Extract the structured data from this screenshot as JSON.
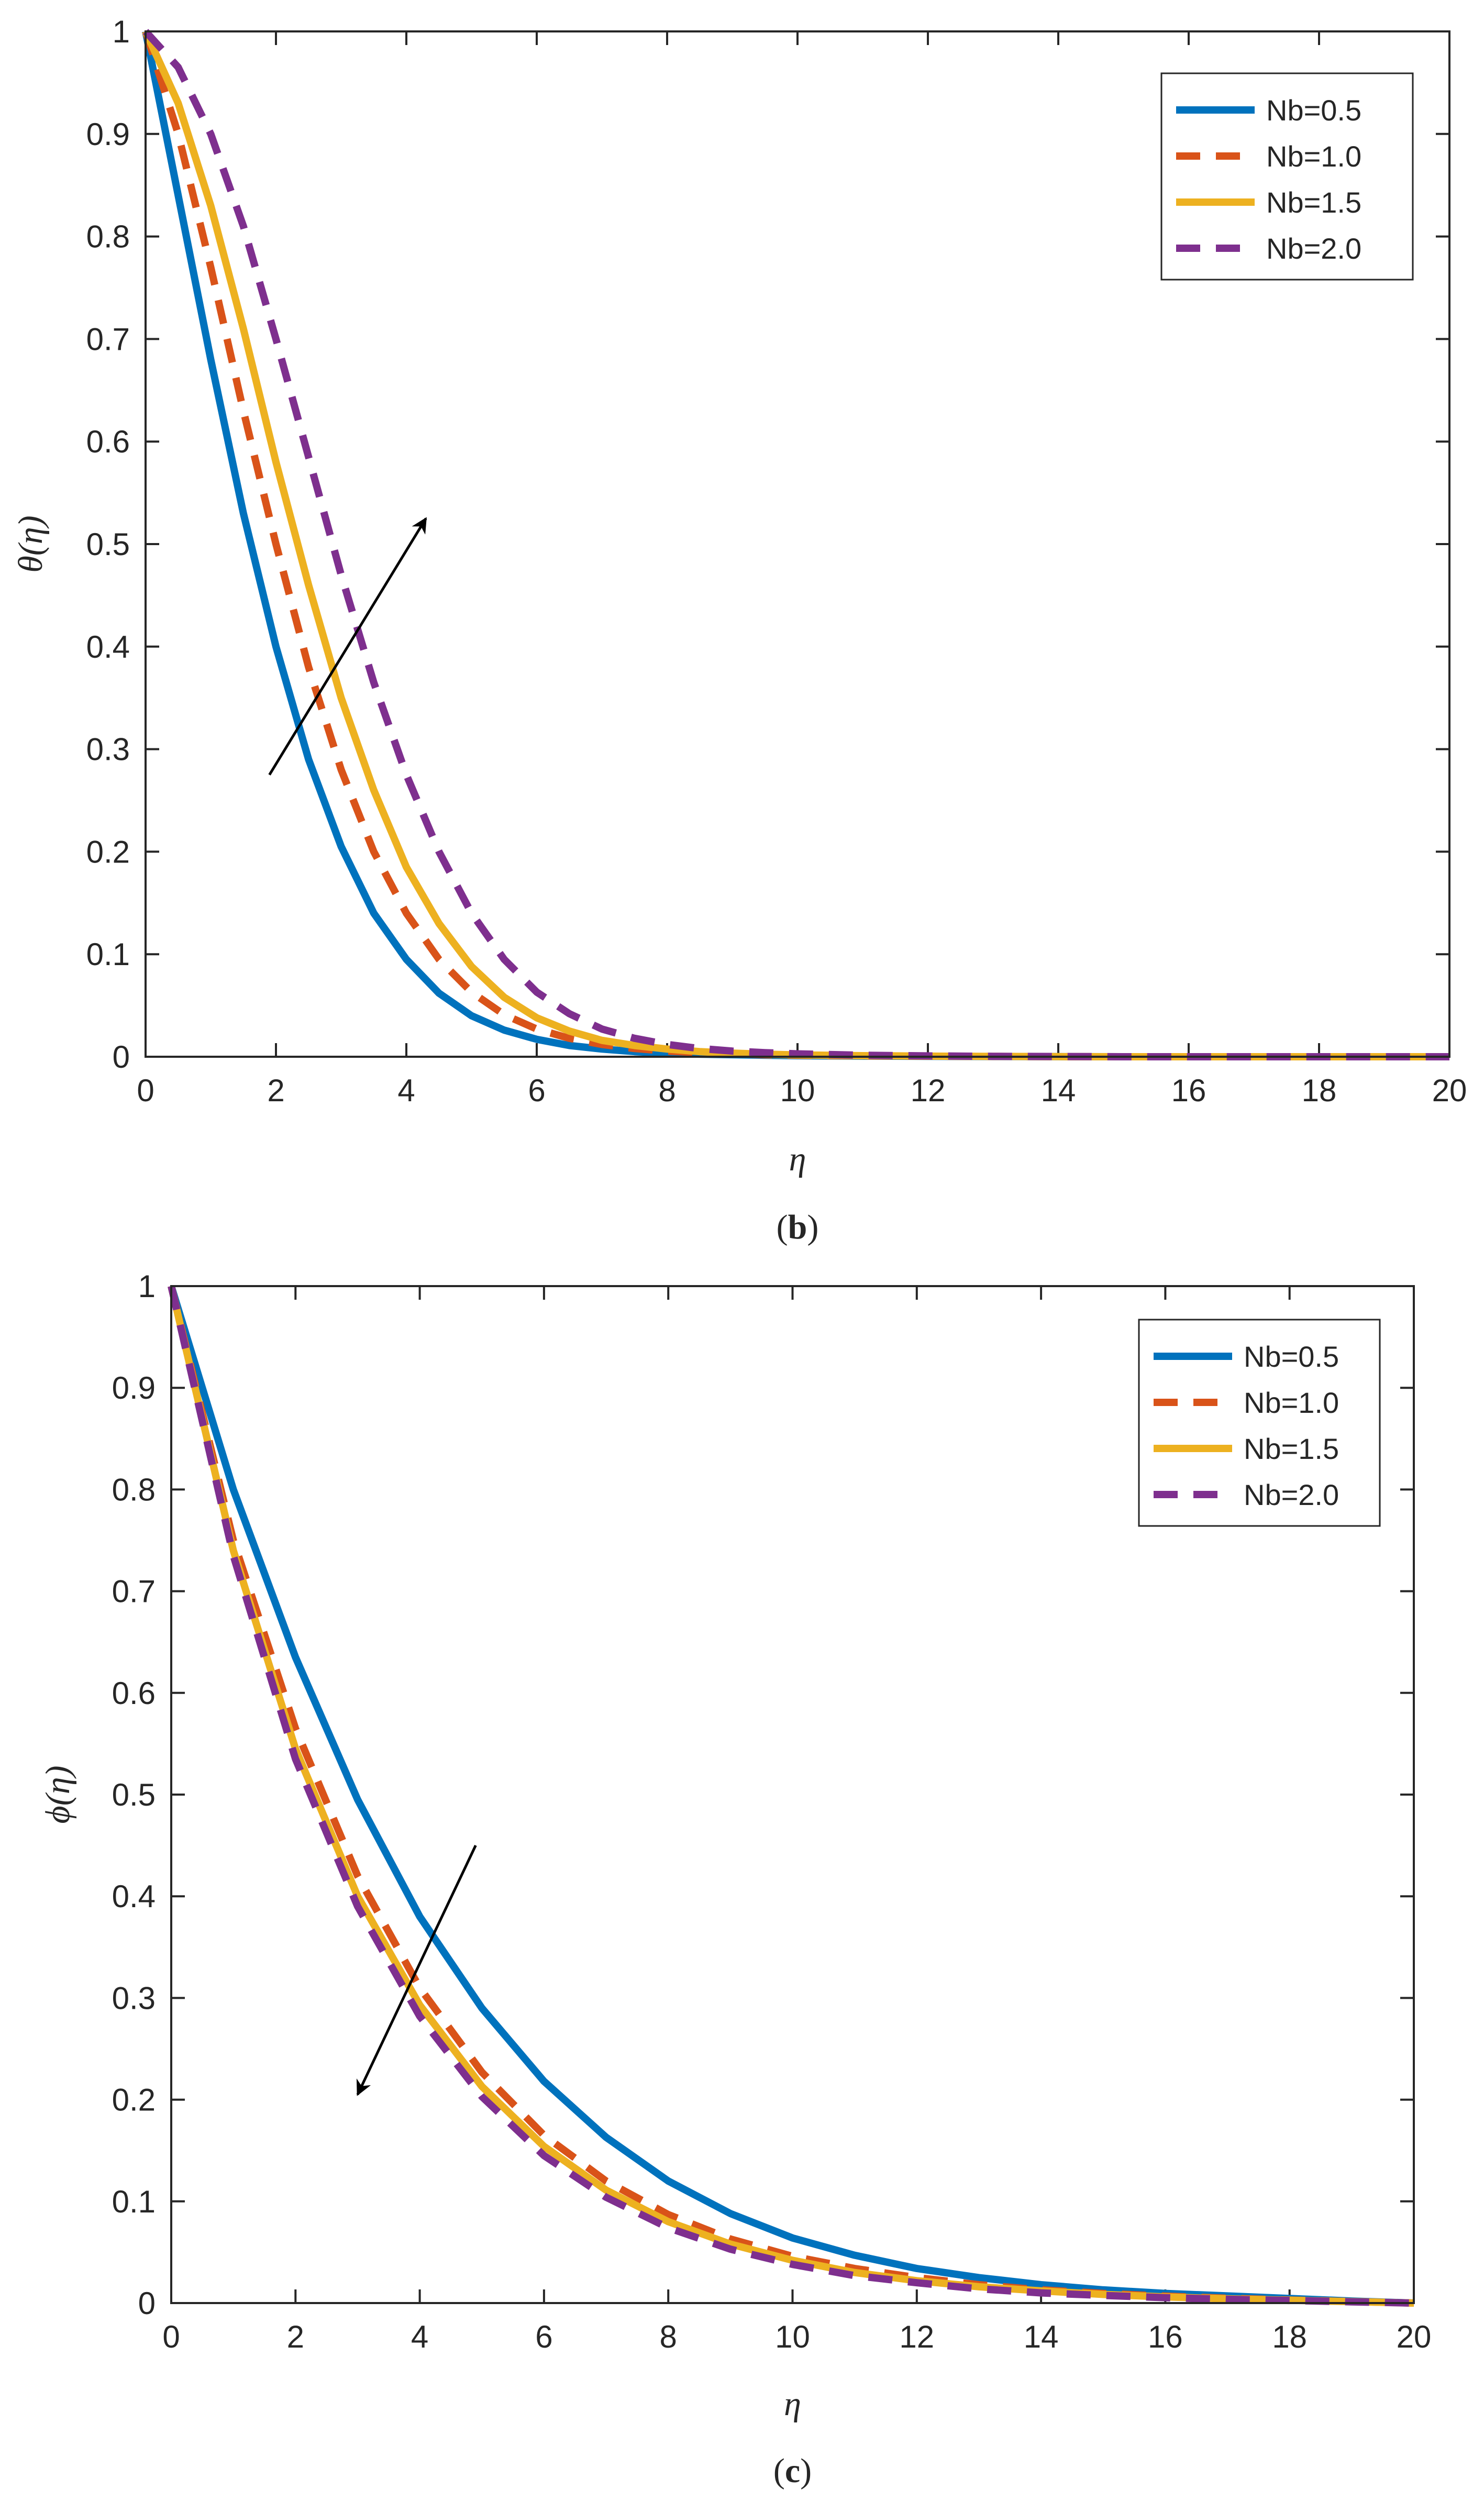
{
  "chart_data": [
    {
      "type": "line",
      "panel": "b",
      "caption_open": "(",
      "caption_label": "b",
      "caption_close": ")",
      "xlabel": "η",
      "ylabel": "θ(η)",
      "xlim": [
        0,
        20
      ],
      "ylim": [
        0,
        1
      ],
      "xticks": [
        "0",
        "2",
        "4",
        "6",
        "8",
        "10",
        "12",
        "14",
        "16",
        "18",
        "20"
      ],
      "yticks": [
        "0",
        "0.1",
        "0.2",
        "0.3",
        "0.4",
        "0.5",
        "0.6",
        "0.7",
        "0.8",
        "0.9",
        "1"
      ],
      "legend_position": "top-right",
      "arrow": {
        "from": [
          1.9,
          0.275
        ],
        "to": [
          4.3,
          0.525
        ],
        "direction": "increasing Nb"
      },
      "x": [
        0,
        0.5,
        1,
        1.5,
        2,
        2.5,
        3,
        3.5,
        4,
        4.5,
        5,
        5.5,
        6,
        6.5,
        7,
        7.5,
        8,
        8.5,
        9,
        9.5,
        10,
        11,
        12,
        13,
        14,
        15,
        16,
        17,
        18,
        19,
        20
      ],
      "series": [
        {
          "name": "Nb=0.5",
          "color": "#0072BD",
          "dash": "solid",
          "values": [
            1.0,
            0.84,
            0.68,
            0.53,
            0.4,
            0.29,
            0.205,
            0.14,
            0.095,
            0.062,
            0.04,
            0.026,
            0.017,
            0.011,
            0.0075,
            0.005,
            0.0035,
            0.0025,
            0.002,
            0.0015,
            0.001,
            0.0006,
            0.0004,
            0.0002,
            0.0001,
            0,
            0,
            0,
            0,
            0,
            0
          ]
        },
        {
          "name": "Nb=1.0",
          "color": "#D95319",
          "dash": "dashed",
          "values": [
            1.0,
            0.9,
            0.77,
            0.63,
            0.5,
            0.38,
            0.28,
            0.2,
            0.14,
            0.095,
            0.063,
            0.041,
            0.027,
            0.018,
            0.012,
            0.008,
            0.0055,
            0.004,
            0.003,
            0.002,
            0.0015,
            0.0008,
            0.0005,
            0.0003,
            0.0001,
            0,
            0,
            0,
            0,
            0,
            0
          ]
        },
        {
          "name": "Nb=1.5",
          "color": "#EDB120",
          "dash": "solid",
          "values": [
            1.0,
            0.93,
            0.83,
            0.71,
            0.58,
            0.46,
            0.35,
            0.26,
            0.185,
            0.13,
            0.088,
            0.058,
            0.038,
            0.025,
            0.016,
            0.011,
            0.0075,
            0.005,
            0.0035,
            0.0025,
            0.0018,
            0.001,
            0.0006,
            0.0003,
            0.0001,
            0,
            0,
            0,
            0,
            0,
            0
          ]
        },
        {
          "name": "Nb=2.0",
          "color": "#7E2F8E",
          "dash": "dashed",
          "values": [
            1.0,
            0.965,
            0.9,
            0.81,
            0.7,
            0.585,
            0.47,
            0.365,
            0.275,
            0.2,
            0.14,
            0.095,
            0.063,
            0.042,
            0.027,
            0.018,
            0.012,
            0.008,
            0.0055,
            0.004,
            0.0028,
            0.0015,
            0.0008,
            0.0004,
            0.0002,
            0,
            0,
            0,
            0,
            0,
            0
          ]
        }
      ]
    },
    {
      "type": "line",
      "panel": "c",
      "caption_open": "(",
      "caption_label": "c",
      "caption_close": ")",
      "xlabel": "η",
      "ylabel": "ϕ(η)",
      "xlim": [
        0,
        20
      ],
      "ylim": [
        0,
        1
      ],
      "xticks": [
        "0",
        "2",
        "4",
        "6",
        "8",
        "10",
        "12",
        "14",
        "16",
        "18",
        "20"
      ],
      "yticks": [
        "0",
        "0.1",
        "0.2",
        "0.3",
        "0.4",
        "0.5",
        "0.6",
        "0.7",
        "0.8",
        "0.9",
        "1"
      ],
      "legend_position": "top-right",
      "arrow": {
        "from": [
          4.9,
          0.45
        ],
        "to": [
          3.0,
          0.205
        ],
        "direction": "increasing Nb"
      },
      "x": [
        0,
        1,
        2,
        3,
        4,
        5,
        6,
        7,
        8,
        9,
        10,
        11,
        12,
        13,
        14,
        15,
        16,
        17,
        18,
        19,
        20
      ],
      "series": [
        {
          "name": "Nb=0.5",
          "color": "#0072BD",
          "dash": "solid",
          "values": [
            1.0,
            0.8,
            0.635,
            0.495,
            0.38,
            0.29,
            0.218,
            0.163,
            0.12,
            0.088,
            0.064,
            0.047,
            0.034,
            0.025,
            0.018,
            0.013,
            0.0095,
            0.007,
            0.0045,
            0.002,
            0
          ]
        },
        {
          "name": "Nb=1.0",
          "color": "#D95319",
          "dash": "dashed",
          "values": [
            1.0,
            0.75,
            0.565,
            0.42,
            0.31,
            0.227,
            0.165,
            0.12,
            0.087,
            0.063,
            0.046,
            0.034,
            0.025,
            0.018,
            0.013,
            0.0095,
            0.0068,
            0.0048,
            0.003,
            0.0015,
            0
          ]
        },
        {
          "name": "Nb=1.5",
          "color": "#EDB120",
          "dash": "solid",
          "values": [
            1.0,
            0.74,
            0.545,
            0.4,
            0.293,
            0.213,
            0.154,
            0.111,
            0.08,
            0.058,
            0.042,
            0.03,
            0.022,
            0.016,
            0.012,
            0.0085,
            0.006,
            0.0042,
            0.0028,
            0.0014,
            0
          ]
        },
        {
          "name": "Nb=2.0",
          "color": "#7E2F8E",
          "dash": "dashed",
          "values": [
            1.0,
            0.735,
            0.535,
            0.39,
            0.282,
            0.203,
            0.145,
            0.104,
            0.074,
            0.053,
            0.038,
            0.027,
            0.02,
            0.014,
            0.01,
            0.0075,
            0.0053,
            0.0037,
            0.0025,
            0.0012,
            0
          ]
        }
      ]
    }
  ]
}
